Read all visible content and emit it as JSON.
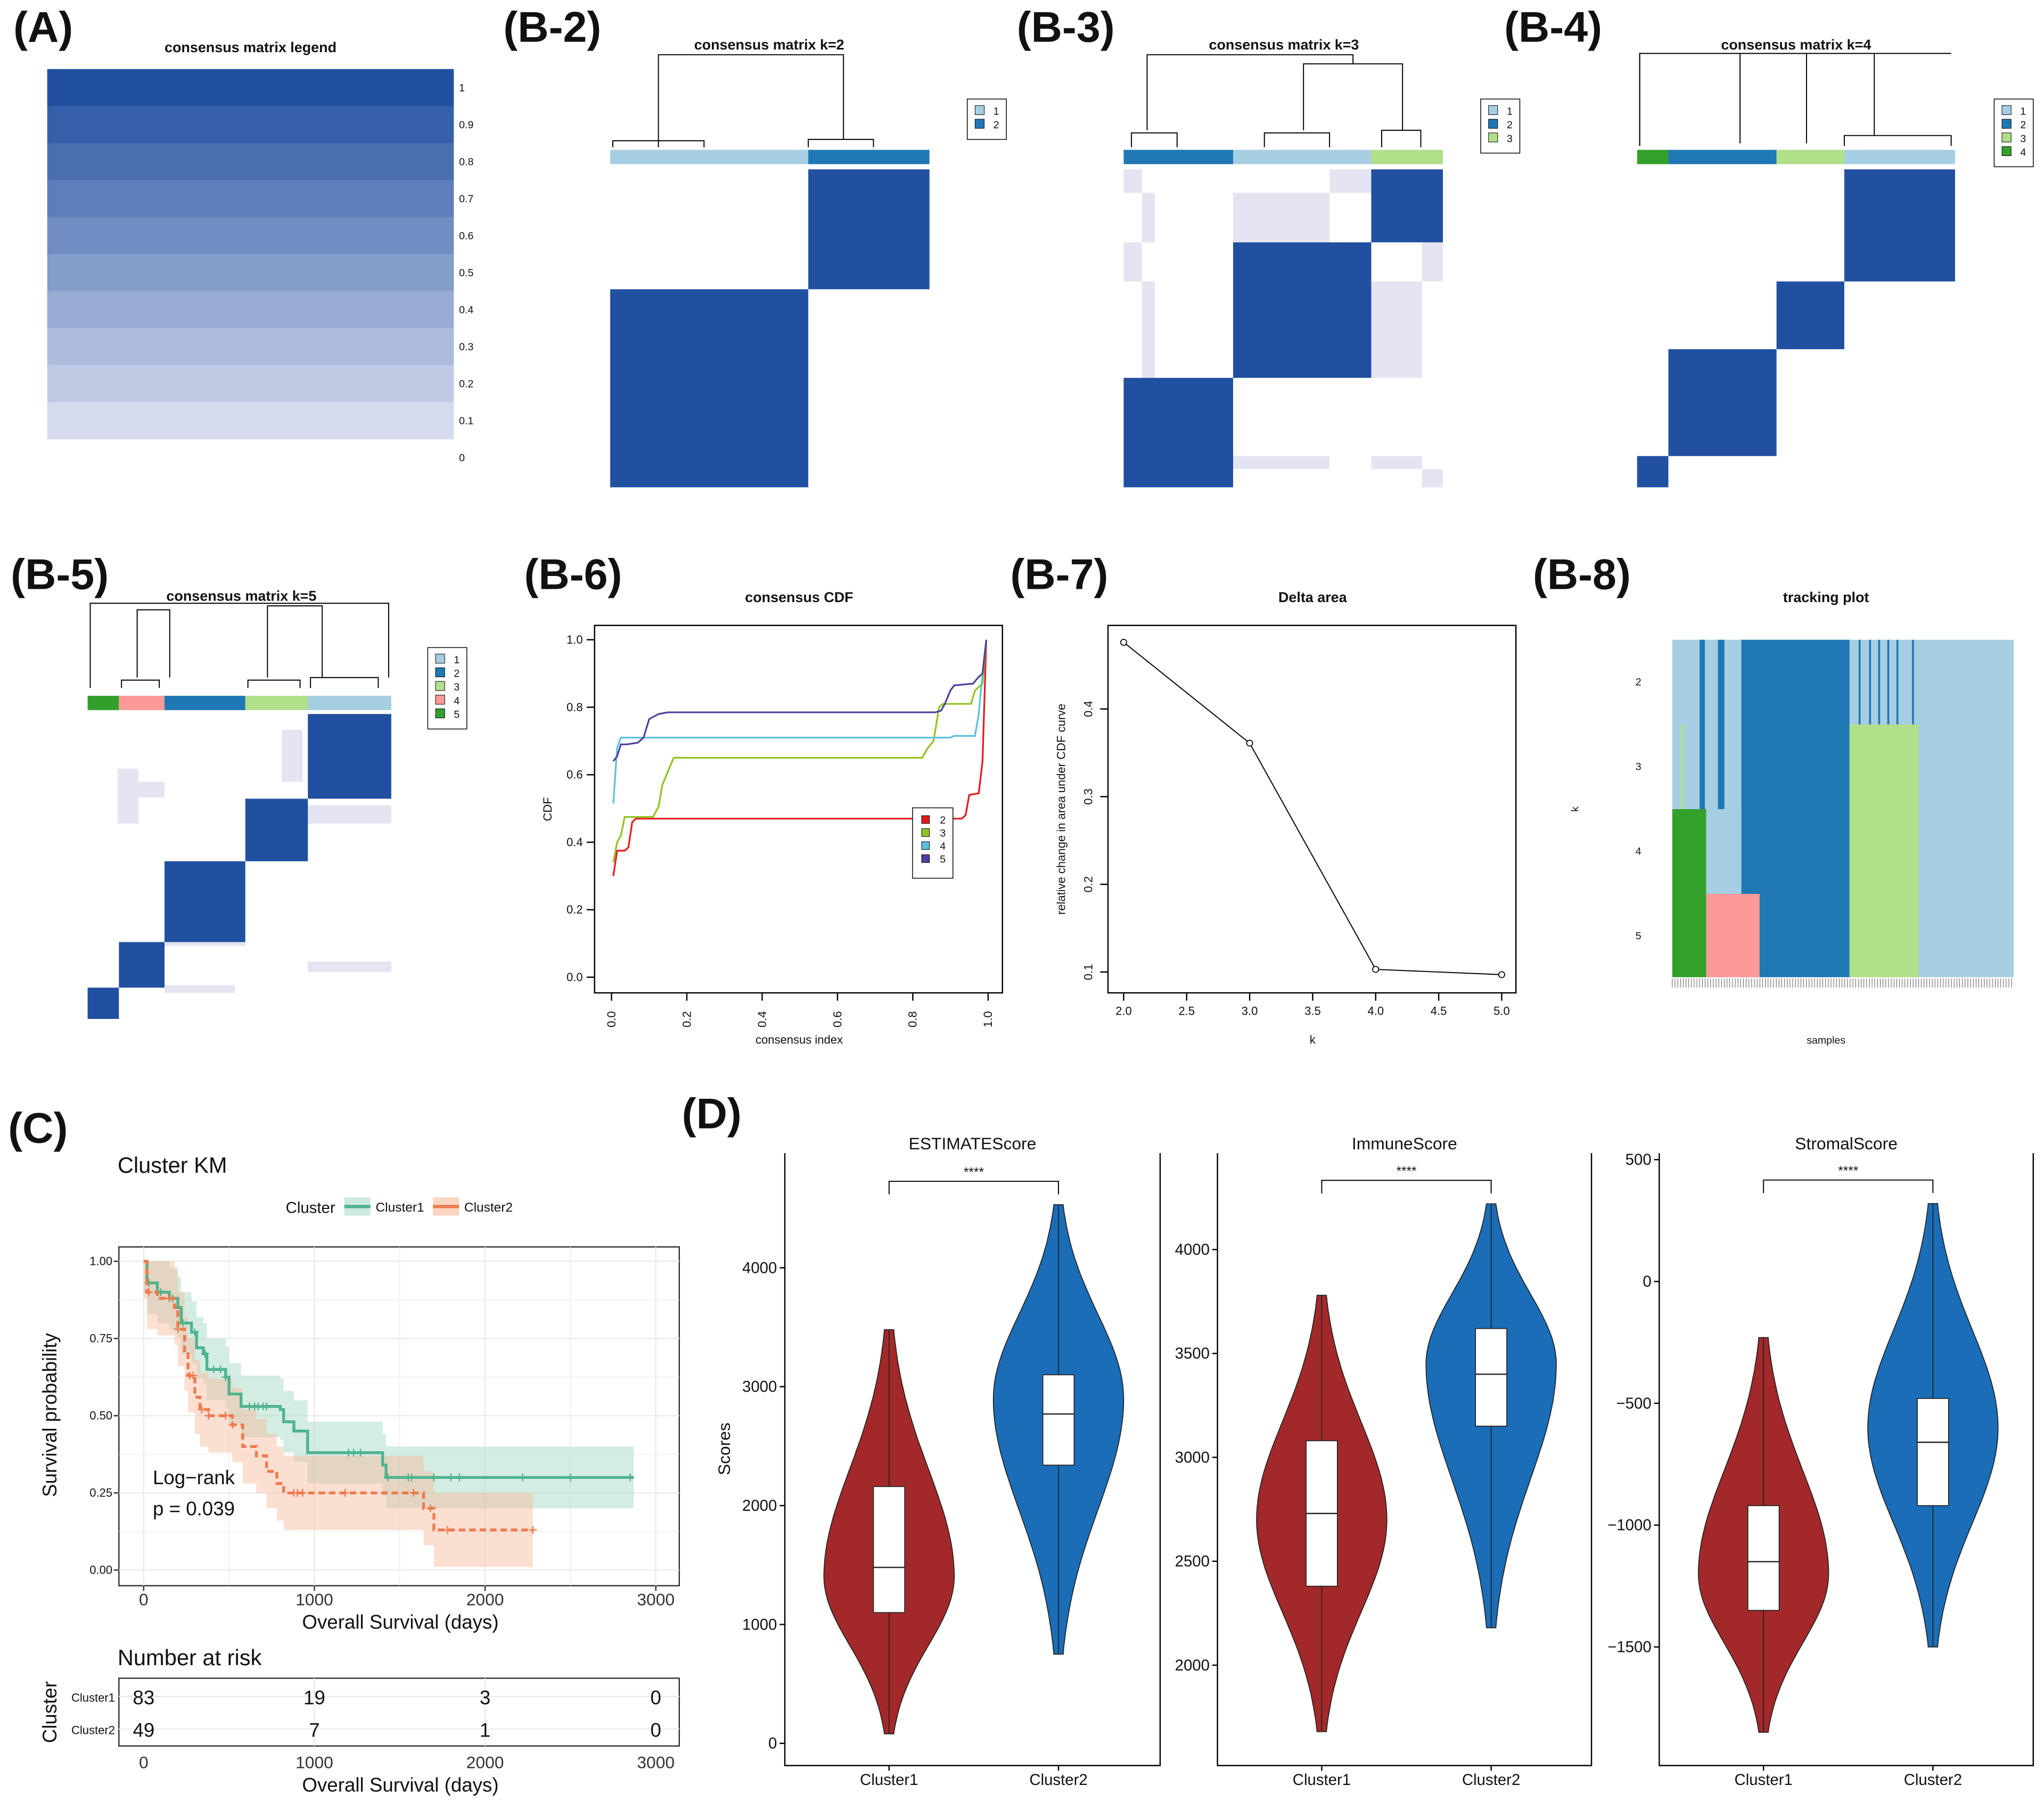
{
  "panel_labels": {
    "A": "(A)",
    "B2": "(B-2)",
    "B3": "(B-3)",
    "B4": "(B-4)",
    "B5": "(B-5)",
    "B6": "(B-6)",
    "B7": "(B-7)",
    "B8": "(B-8)",
    "C": "(C)",
    "D": "(D)"
  },
  "colors": {
    "matrix_blue": "#2150a0",
    "matrix_light": "#e4e4f2",
    "cl1": "#a6cee3",
    "cl2": "#1f78b4",
    "cl3": "#b2df8a",
    "cl4": "#fb9a99",
    "cl5": "#33a02c",
    "cl4_k4": "#33a02c",
    "km_c1": "#4fb38f",
    "km_c2": "#ee7a4d",
    "vio_c1": "#a3282a",
    "vio_c2": "#1a6db6"
  },
  "legend_matrix": {
    "title": "consensus matrix legend",
    "ticks": [
      "1",
      "0.9",
      "0.8",
      "0.7",
      "0.6",
      "0.5",
      "0.4",
      "0.3",
      "0.2",
      "0.1",
      "0"
    ],
    "band_values": [
      1,
      0.9,
      0.8,
      0.7,
      0.6,
      0.5,
      0.4,
      0.3,
      0.2,
      0.1
    ]
  },
  "consensus_matrices": [
    {
      "title": "consensus matrix k=2",
      "legend": [
        "1",
        "2"
      ]
    },
    {
      "title": "consensus matrix k=3",
      "legend": [
        "1",
        "2",
        "3"
      ]
    },
    {
      "title": "consensus matrix k=4",
      "legend": [
        "1",
        "2",
        "3",
        "4"
      ]
    },
    {
      "title": "consensus matrix k=5",
      "legend": [
        "1",
        "2",
        "3",
        "4",
        "5"
      ]
    }
  ],
  "tracking": {
    "title": "tracking plot",
    "xlabel": "samples",
    "ylabel": "k",
    "k_labels": [
      "2",
      "3",
      "4",
      "5"
    ]
  },
  "chart_data": [
    {
      "type": "line",
      "title": "consensus CDF",
      "xlabel": "consensus index",
      "ylabel": "CDF",
      "xlim": [
        0,
        1
      ],
      "ylim": [
        0,
        1
      ],
      "xticks": [
        "0.0",
        "0.2",
        "0.4",
        "0.6",
        "0.8",
        "1.0"
      ],
      "yticks": [
        "0.0",
        "0.2",
        "0.4",
        "0.6",
        "0.8",
        "1.0"
      ],
      "legend_position": "center-right",
      "series": [
        {
          "name": "2",
          "color": "#e41a1c",
          "points": [
            [
              0.005,
              0.3
            ],
            [
              0.015,
              0.375
            ],
            [
              0.035,
              0.375
            ],
            [
              0.045,
              0.385
            ],
            [
              0.055,
              0.46
            ],
            [
              0.065,
              0.47
            ],
            [
              0.93,
              0.47
            ],
            [
              0.94,
              0.48
            ],
            [
              0.95,
              0.54
            ],
            [
              0.975,
              0.545
            ],
            [
              0.985,
              0.64
            ],
            [
              0.995,
              1.0
            ]
          ]
        },
        {
          "name": "3",
          "color": "#8fc31f",
          "points": [
            [
              0.005,
              0.34
            ],
            [
              0.015,
              0.4
            ],
            [
              0.025,
              0.42
            ],
            [
              0.035,
              0.475
            ],
            [
              0.11,
              0.475
            ],
            [
              0.125,
              0.505
            ],
            [
              0.135,
              0.57
            ],
            [
              0.165,
              0.65
            ],
            [
              0.825,
              0.65
            ],
            [
              0.84,
              0.68
            ],
            [
              0.855,
              0.7
            ],
            [
              0.87,
              0.8
            ],
            [
              0.88,
              0.81
            ],
            [
              0.955,
              0.81
            ],
            [
              0.965,
              0.85
            ],
            [
              0.985,
              0.87
            ],
            [
              0.995,
              1.0
            ]
          ]
        },
        {
          "name": "4",
          "color": "#5bc0de",
          "points": [
            [
              0.005,
              0.515
            ],
            [
              0.015,
              0.68
            ],
            [
              0.025,
              0.71
            ],
            [
              0.9,
              0.71
            ],
            [
              0.91,
              0.715
            ],
            [
              0.965,
              0.715
            ],
            [
              0.975,
              0.78
            ],
            [
              0.985,
              0.9
            ],
            [
              0.995,
              1.0
            ]
          ]
        },
        {
          "name": "5",
          "color": "#4b3f9c",
          "points": [
            [
              0.005,
              0.64
            ],
            [
              0.015,
              0.655
            ],
            [
              0.025,
              0.69
            ],
            [
              0.04,
              0.69
            ],
            [
              0.07,
              0.695
            ],
            [
              0.085,
              0.71
            ],
            [
              0.1,
              0.765
            ],
            [
              0.125,
              0.78
            ],
            [
              0.15,
              0.785
            ],
            [
              0.86,
              0.785
            ],
            [
              0.875,
              0.79
            ],
            [
              0.885,
              0.81
            ],
            [
              0.9,
              0.85
            ],
            [
              0.91,
              0.865
            ],
            [
              0.96,
              0.87
            ],
            [
              0.975,
              0.89
            ],
            [
              0.985,
              0.9
            ],
            [
              0.995,
              1.0
            ]
          ]
        }
      ]
    },
    {
      "type": "line",
      "title": "Delta area",
      "xlabel": "k",
      "ylabel": "relative change in area under CDF curve",
      "xlim": [
        2,
        5
      ],
      "ylim": [
        0.1,
        0.4
      ],
      "xticks": [
        "2.0",
        "2.5",
        "3.0",
        "3.5",
        "4.0",
        "4.5",
        "5.0"
      ],
      "yticks": [
        "0.1",
        "0.2",
        "0.3",
        "0.4"
      ],
      "x": [
        2,
        3,
        4,
        5
      ],
      "y": [
        0.476,
        0.361,
        0.103,
        0.097
      ]
    },
    {
      "type": "line",
      "subtype": "kaplan-meier",
      "title": "Cluster KM",
      "xlabel": "Overall Survival (days)",
      "ylabel": "Survival probability",
      "xlim": [
        0,
        3000
      ],
      "ylim": [
        0,
        1
      ],
      "xticks": [
        "0",
        "1000",
        "2000",
        "3000"
      ],
      "yticks": [
        "0.00",
        "0.25",
        "0.50",
        "0.75",
        "1.00"
      ],
      "legend": {
        "title": "Cluster",
        "position": "top"
      },
      "annotation": [
        "Log−rank",
        "p = 0.039"
      ],
      "series": [
        {
          "name": "Cluster1",
          "color": "#4fb38f",
          "steps": [
            [
              0,
              1
            ],
            [
              20,
              0.93
            ],
            [
              80,
              0.9
            ],
            [
              150,
              0.88
            ],
            [
              200,
              0.85
            ],
            [
              220,
              0.8
            ],
            [
              280,
              0.77
            ],
            [
              310,
              0.72
            ],
            [
              350,
              0.7
            ],
            [
              370,
              0.65
            ],
            [
              480,
              0.625
            ],
            [
              500,
              0.57
            ],
            [
              570,
              0.53
            ],
            [
              800,
              0.52
            ],
            [
              820,
              0.48
            ],
            [
              880,
              0.45
            ],
            [
              960,
              0.38
            ],
            [
              1400,
              0.34
            ],
            [
              1420,
              0.3
            ],
            [
              2870,
              0.3
            ]
          ],
          "censor": [
            30,
            100,
            170,
            230,
            300,
            360,
            410,
            450,
            480,
            620,
            650,
            670,
            700,
            720,
            1200,
            1230,
            1270,
            1430,
            1550,
            1570,
            1700,
            1800,
            1850,
            2220,
            2500,
            2850
          ]
        },
        {
          "name": "Cluster2",
          "color": "#ee7a4d",
          "steps": [
            [
              0,
              1
            ],
            [
              20,
              0.9
            ],
            [
              80,
              0.88
            ],
            [
              180,
              0.85
            ],
            [
              200,
              0.78
            ],
            [
              240,
              0.7
            ],
            [
              260,
              0.63
            ],
            [
              300,
              0.56
            ],
            [
              330,
              0.52
            ],
            [
              380,
              0.5
            ],
            [
              520,
              0.47
            ],
            [
              580,
              0.4
            ],
            [
              660,
              0.37
            ],
            [
              720,
              0.32
            ],
            [
              780,
              0.28
            ],
            [
              820,
              0.25
            ],
            [
              1640,
              0.2
            ],
            [
              1700,
              0.13
            ],
            [
              2280,
              0.13
            ]
          ],
          "censor": [
            30,
            150,
            200,
            270,
            290,
            340,
            380,
            480,
            520,
            880,
            900,
            930,
            1180,
            1580,
            1680,
            1780,
            2280
          ]
        }
      ],
      "risk_table": {
        "title": "Number at risk",
        "ylabel": "Cluster",
        "xlabel": "Overall Survival (days)",
        "times": [
          0,
          1000,
          2000,
          3000
        ],
        "rows": [
          {
            "name": "Cluster1",
            "values": [
              "83",
              "19",
              "3",
              "0"
            ]
          },
          {
            "name": "Cluster2",
            "values": [
              "49",
              "7",
              "1",
              "0"
            ]
          }
        ]
      }
    },
    {
      "type": "violin",
      "ylabel": "Scores",
      "categories": [
        "Cluster1",
        "Cluster2"
      ],
      "significance": "****",
      "panels": [
        {
          "title": "ESTIMATEScore",
          "ylim": [
            -50,
            5200
          ],
          "yticks": [
            0,
            1000,
            2000,
            3000,
            4000
          ],
          "ytick_labels": [
            "0",
            "1000",
            "2000",
            "3000",
            "4000"
          ],
          "groups": [
            {
              "name": "Cluster1",
              "min": 80,
              "q1": 1100,
              "median": 1480,
              "q3": 2160,
              "max": 3480,
              "mode": 1400
            },
            {
              "name": "Cluster2",
              "min": 750,
              "q1": 2340,
              "median": 2770,
              "q3": 3100,
              "max": 4530,
              "mode": 2900
            }
          ]
        },
        {
          "title": "ImmuneScore",
          "ylim": [
            1600,
            4600
          ],
          "yticks": [
            2000,
            2500,
            3000,
            3500,
            4000
          ],
          "ytick_labels": [
            "2000",
            "2500",
            "3000",
            "3500",
            "4000"
          ],
          "groups": [
            {
              "name": "Cluster1",
              "min": 1680,
              "q1": 2380,
              "median": 2730,
              "q3": 3080,
              "max": 3780,
              "mode": 2700
            },
            {
              "name": "Cluster2",
              "min": 2180,
              "q1": 3150,
              "median": 3400,
              "q3": 3620,
              "max": 4220,
              "mode": 3450
            }
          ]
        },
        {
          "title": "StromalScore",
          "ylim": [
            -1900,
            500
          ],
          "yticks": [
            -1500,
            -1000,
            -500,
            0,
            500
          ],
          "ytick_labels": [
            "−1500",
            "−1000",
            "−500",
            "0",
            "500"
          ],
          "groups": [
            {
              "name": "Cluster1",
              "min": -1850,
              "q1": -1350,
              "median": -1150,
              "q3": -920,
              "max": -230,
              "mode": -1200
            },
            {
              "name": "Cluster2",
              "min": -1500,
              "q1": -920,
              "median": -660,
              "q3": -480,
              "max": 320,
              "mode": -600
            }
          ]
        }
      ]
    }
  ]
}
